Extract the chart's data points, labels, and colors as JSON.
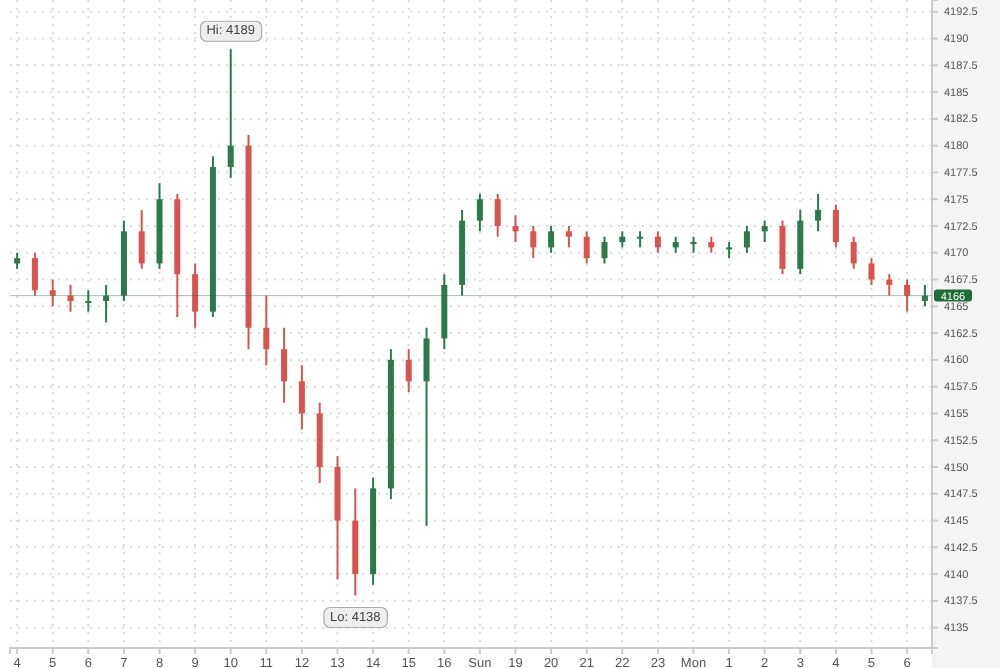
{
  "chart_data": {
    "type": "candlestick",
    "categories": [
      "4",
      null,
      "5",
      null,
      "6",
      null,
      "7",
      null,
      "8",
      null,
      "9",
      null,
      "10",
      null,
      "11",
      null,
      "12",
      null,
      "13",
      null,
      "14",
      null,
      "15",
      null,
      "16",
      null,
      "Sun",
      null,
      "19",
      null,
      "20",
      null,
      "21",
      null,
      "22",
      null,
      "23",
      null,
      "Mon",
      null,
      "1",
      null,
      "2",
      null,
      "3",
      null,
      "4",
      null,
      "5",
      null,
      "6",
      null
    ],
    "ohlc": [
      [
        4169,
        4170,
        4168.5,
        4169.5
      ],
      [
        4169.5,
        4170,
        4166,
        4166.5
      ],
      [
        4166.5,
        4167.5,
        4165,
        4166
      ],
      [
        4166,
        4167,
        4164.5,
        4165.5
      ],
      [
        4165.5,
        4166.5,
        4164.5,
        4165.5
      ],
      [
        4165.5,
        4167,
        4163.5,
        4166
      ],
      [
        4166,
        4173,
        4165.5,
        4172
      ],
      [
        4172,
        4174,
        4168.5,
        4169
      ],
      [
        4169,
        4176.5,
        4168.5,
        4175
      ],
      [
        4175,
        4175.5,
        4164,
        4168
      ],
      [
        4168,
        4169,
        4163,
        4164.5
      ],
      [
        4164.5,
        4179,
        4164,
        4178
      ],
      [
        4178,
        4189,
        4177,
        4180
      ],
      [
        4180,
        4181,
        4161,
        4163
      ],
      [
        4163,
        4166,
        4159.5,
        4161
      ],
      [
        4161,
        4163,
        4156,
        4158
      ],
      [
        4158,
        4159.5,
        4153.5,
        4155
      ],
      [
        4155,
        4156,
        4148.5,
        4150
      ],
      [
        4150,
        4151,
        4139.5,
        4145
      ],
      [
        4145,
        4148,
        4138,
        4140
      ],
      [
        4140,
        4149,
        4139,
        4148
      ],
      [
        4148,
        4161,
        4147,
        4160
      ],
      [
        4160,
        4161,
        4157,
        4158
      ],
      [
        4158,
        4163,
        4144.5,
        4162
      ],
      [
        4162,
        4168,
        4161,
        4167
      ],
      [
        4167,
        4174,
        4166,
        4173
      ],
      [
        4173,
        4175.5,
        4172,
        4175
      ],
      [
        4175,
        4175.5,
        4171.5,
        4172.5
      ],
      [
        4172.5,
        4173.5,
        4171,
        4172
      ],
      [
        4172,
        4172.5,
        4169.5,
        4170.5
      ],
      [
        4170.5,
        4172.5,
        4170,
        4172
      ],
      [
        4172,
        4172.5,
        4170.5,
        4171.5
      ],
      [
        4171.5,
        4172,
        4169,
        4169.5
      ],
      [
        4169.5,
        4171.5,
        4169,
        4171
      ],
      [
        4171,
        4172,
        4170.5,
        4171.5
      ],
      [
        4171.5,
        4172,
        4170.5,
        4171.5
      ],
      [
        4171.5,
        4172,
        4170,
        4170.5
      ],
      [
        4170.5,
        4171.5,
        4170,
        4171
      ],
      [
        4171,
        4171.5,
        4170,
        4171
      ],
      [
        4171,
        4171.5,
        4170,
        4170.5
      ],
      [
        4170.5,
        4171,
        4169.5,
        4170.5
      ],
      [
        4170.5,
        4172.5,
        4170,
        4172
      ],
      [
        4172,
        4173,
        4171,
        4172.5
      ],
      [
        4172.5,
        4173,
        4168,
        4168.5
      ],
      [
        4168.5,
        4174,
        4168,
        4173
      ],
      [
        4173,
        4175.5,
        4172,
        4174
      ],
      [
        4174,
        4174.5,
        4170.5,
        4171
      ],
      [
        4171,
        4171.5,
        4168.5,
        4169
      ],
      [
        4169,
        4169.5,
        4167,
        4167.5
      ],
      [
        4167.5,
        4168,
        4166,
        4167
      ],
      [
        4167,
        4167.5,
        4164.5,
        4166
      ],
      [
        4165.5,
        4167,
        4165,
        4166
      ]
    ],
    "ylim": [
      4133.1,
      4193.6
    ],
    "yticks": [
      4135,
      4137.5,
      4140,
      4142.5,
      4145,
      4147.5,
      4150,
      4152.5,
      4155,
      4157.5,
      4160,
      4162.5,
      4165,
      4167.5,
      4170,
      4172.5,
      4175,
      4177.5,
      4180,
      4182.5,
      4185,
      4187.5,
      4190,
      4192.5
    ],
    "grid": true,
    "ref_lines": [
      {
        "axis": "y",
        "value": 4166,
        "label": "4166",
        "color": "#1e6b3a"
      }
    ],
    "annotations": [
      {
        "text": "Hi: 4189",
        "x": "10",
        "y": 4189
      },
      {
        "text": "Lo: 4138",
        "y": 4138
      }
    ]
  }
}
